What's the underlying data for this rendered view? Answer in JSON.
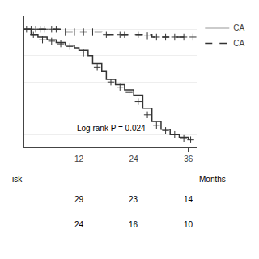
{
  "chart_data": {
    "type": "step",
    "xlabel": "Months",
    "annotations": [
      "Log rank P = 0.024"
    ],
    "xlim": [
      0,
      38
    ],
    "xticks": [
      12,
      24,
      36
    ],
    "ylim": [
      0.55,
      1.05
    ],
    "yticks": [
      0.6,
      0.7,
      0.8,
      0.9,
      1.0
    ],
    "grid": true,
    "tick_labels": "x",
    "legend": "right",
    "at_risk_label": "isk",
    "at_risk_x": [
      12,
      24,
      36
    ],
    "series": [
      {
        "name": "CA",
        "color": "#333333",
        "line_style": "solid",
        "marker": "plus",
        "x": [
          0,
          1.5,
          3,
          5,
          7,
          9,
          11,
          12,
          14,
          15,
          17,
          18,
          20,
          22,
          24,
          26,
          28,
          30,
          32,
          34,
          36
        ],
        "values": [
          1.0,
          0.98,
          0.97,
          0.96,
          0.95,
          0.94,
          0.93,
          0.92,
          0.9,
          0.87,
          0.84,
          0.81,
          0.79,
          0.77,
          0.75,
          0.7,
          0.65,
          0.62,
          0.6,
          0.59,
          0.58
        ],
        "censor_x": [
          2,
          4,
          6,
          8,
          10,
          13,
          16,
          19,
          21,
          23,
          25,
          27,
          29,
          31,
          33,
          35,
          36.5
        ],
        "censor_values": [
          0.98,
          0.96,
          0.955,
          0.945,
          0.935,
          0.91,
          0.855,
          0.8,
          0.78,
          0.76,
          0.725,
          0.675,
          0.635,
          0.615,
          0.6,
          0.585,
          0.58
        ],
        "at_risk": [
          29,
          23,
          14
        ]
      },
      {
        "name": "CA",
        "color": "#333333",
        "line_style": "dashed",
        "marker": "plus",
        "x": [
          0,
          1,
          3,
          5,
          8,
          10,
          14,
          17,
          20,
          24,
          28,
          32,
          36
        ],
        "values": [
          1.0,
          1.0,
          1.0,
          1.0,
          0.99,
          0.99,
          0.99,
          0.98,
          0.98,
          0.98,
          0.97,
          0.97,
          0.97
        ],
        "censor_x": [
          0.5,
          1.5,
          2.5,
          3.5,
          4.5,
          6,
          7,
          9,
          11,
          13,
          15,
          18,
          21,
          22,
          25,
          27,
          29,
          31,
          33,
          35,
          37
        ],
        "censor_values": [
          1.0,
          1.0,
          1.0,
          1.0,
          1.0,
          1.0,
          1.0,
          0.99,
          0.99,
          0.99,
          0.99,
          0.98,
          0.98,
          0.98,
          0.98,
          0.975,
          0.97,
          0.97,
          0.97,
          0.97,
          0.97
        ],
        "at_risk": [
          24,
          16,
          10
        ]
      }
    ]
  }
}
